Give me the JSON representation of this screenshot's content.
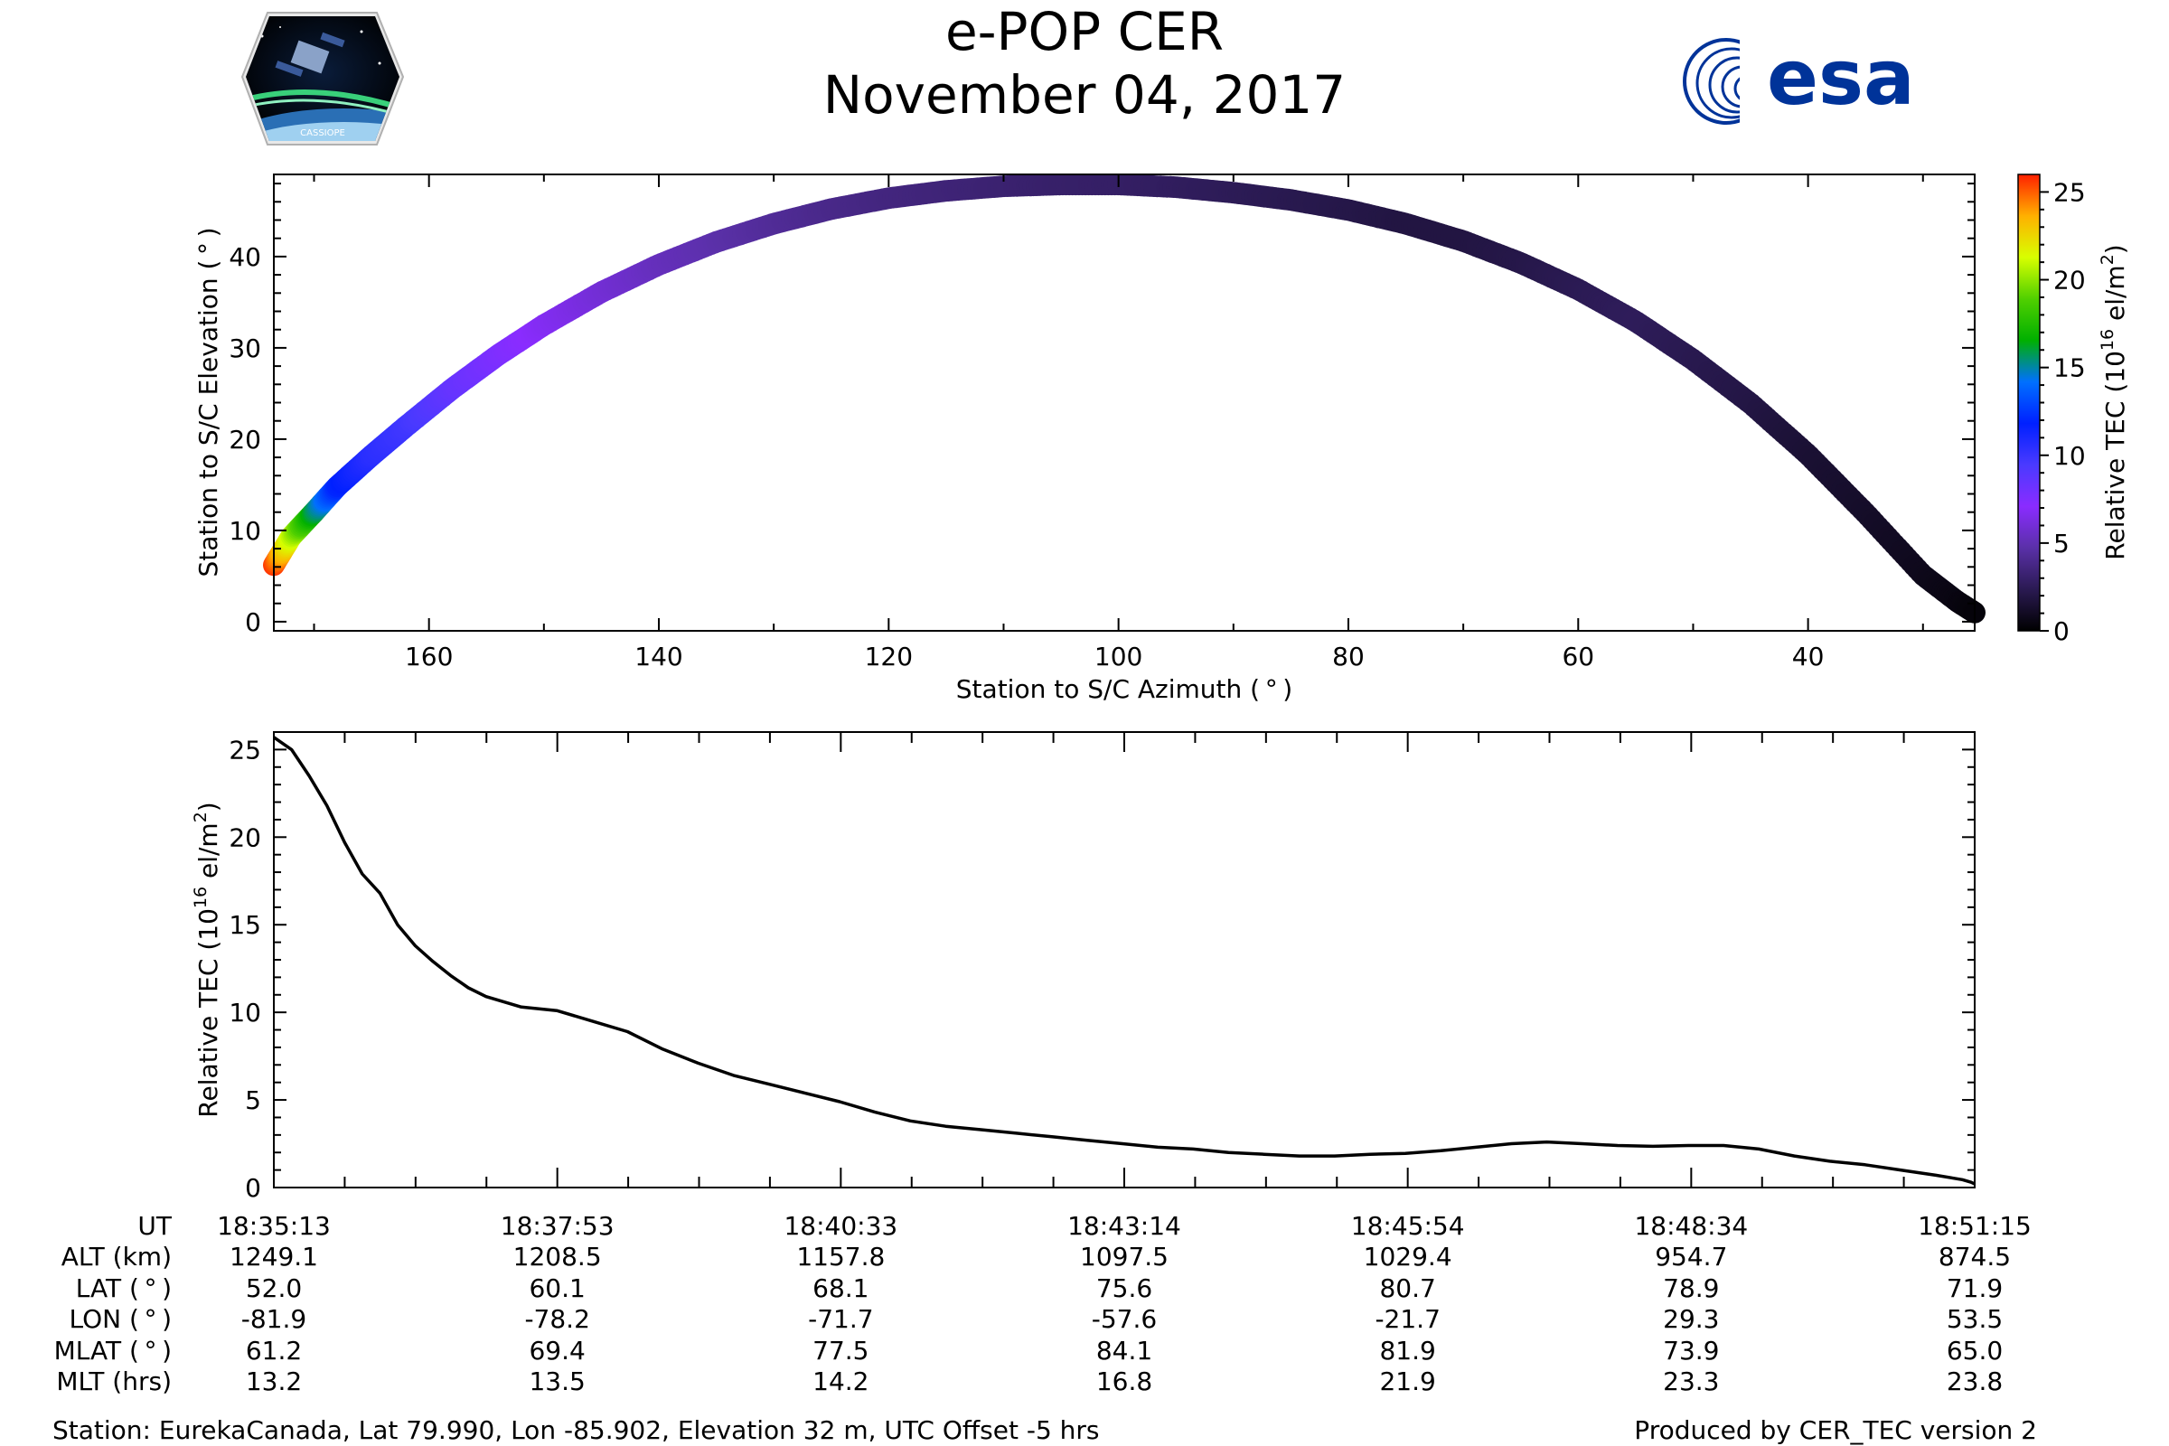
{
  "header": {
    "title": "e-POP CER",
    "date": "November 04, 2017",
    "left_logo_text": "CASSIOPE",
    "right_logo_text": "esa"
  },
  "colors": {
    "esa_blue": "#003399",
    "axis": "#000000",
    "tec_line": "#000000"
  },
  "chart_data": [
    {
      "type": "scatter",
      "name": "elevation-vs-azimuth",
      "xlabel": "Station to S/C Azimuth ( ° )",
      "ylabel": "Station to S/C Elevation ( ° )",
      "xlim": [
        173.5,
        25.5
      ],
      "ylim": [
        -1,
        49
      ],
      "xticks": [
        160,
        140,
        120,
        100,
        80,
        60,
        40
      ],
      "yticks": [
        0,
        10,
        20,
        30,
        40
      ],
      "colorbar": {
        "label": "Relative TEC",
        "label_units": "(10",
        "label_sup": "16",
        "label_tail": " el/m",
        "label_sup2": "2",
        "label_end": ")",
        "min": 0,
        "max": 26,
        "ticks": [
          0,
          5,
          10,
          15,
          20,
          25
        ],
        "colormap": [
          "#000000",
          "#2a1a52",
          "#5a30a8",
          "#8a2cff",
          "#4a3aff",
          "#0020ff",
          "#0070ff",
          "#00b000",
          "#50d000",
          "#d8ff00",
          "#ffb000",
          "#ff2000"
        ]
      },
      "azimuth": [
        173.5,
        172,
        170,
        168,
        165,
        162,
        158,
        154,
        150,
        145,
        140,
        135,
        130,
        125,
        120,
        115,
        110,
        105,
        100,
        95,
        90,
        85,
        80,
        75,
        70,
        65,
        60,
        55,
        50,
        45,
        40,
        35,
        30,
        27,
        25.5
      ],
      "elevation": [
        6.2,
        9.3,
        12.0,
        14.8,
        18.2,
        21.4,
        25.5,
        29.2,
        32.5,
        36.1,
        39.1,
        41.6,
        43.6,
        45.2,
        46.4,
        47.2,
        47.7,
        47.9,
        47.9,
        47.6,
        47.0,
        46.2,
        45.1,
        43.6,
        41.7,
        39.3,
        36.4,
        32.9,
        28.7,
        23.9,
        18.3,
        11.9,
        5.1,
        2.2,
        1.0
      ],
      "tec": [
        25.6,
        21.0,
        16.0,
        12.0,
        10.5,
        9.8,
        8.5,
        7.6,
        6.8,
        6.0,
        5.3,
        4.8,
        4.3,
        3.9,
        3.6,
        3.4,
        3.2,
        3.0,
        2.9,
        2.7,
        2.5,
        2.3,
        2.1,
        1.9,
        1.9,
        2.1,
        2.4,
        2.6,
        2.3,
        2.0,
        1.5,
        1.2,
        0.8,
        0.5,
        0.3
      ]
    },
    {
      "type": "line",
      "name": "tec-vs-time",
      "ylabel": "Relative TEC",
      "ylabel_units": "(10",
      "ylabel_sup": "16",
      "ylabel_tail": " el/m",
      "ylabel_sup2": "2",
      "ylabel_end": ")",
      "xlim": [
        0,
        962
      ],
      "ylim": [
        0,
        26
      ],
      "yticks": [
        0,
        5,
        10,
        15,
        20,
        25
      ],
      "time_s": [
        0,
        10,
        20,
        30,
        40,
        50,
        60,
        70,
        80,
        90,
        100,
        110,
        120,
        140,
        160,
        180,
        200,
        220,
        240,
        260,
        280,
        300,
        320,
        340,
        360,
        380,
        400,
        420,
        440,
        460,
        480,
        500,
        520,
        540,
        560,
        580,
        600,
        620,
        640,
        660,
        680,
        700,
        720,
        740,
        760,
        780,
        800,
        820,
        840,
        860,
        880,
        900,
        920,
        940,
        955,
        960,
        962
      ],
      "tec": [
        25.7,
        25.0,
        23.5,
        21.8,
        19.7,
        17.9,
        16.8,
        15.0,
        13.8,
        12.9,
        12.1,
        11.4,
        10.9,
        10.3,
        10.1,
        9.5,
        8.9,
        7.9,
        7.1,
        6.4,
        5.9,
        5.4,
        4.9,
        4.3,
        3.8,
        3.5,
        3.3,
        3.1,
        2.9,
        2.7,
        2.5,
        2.3,
        2.2,
        2.0,
        1.9,
        1.8,
        1.8,
        1.9,
        1.95,
        2.1,
        2.3,
        2.5,
        2.6,
        2.5,
        2.4,
        2.35,
        2.4,
        2.4,
        2.2,
        1.8,
        1.5,
        1.3,
        1.0,
        0.7,
        0.45,
        0.3,
        0.2
      ]
    }
  ],
  "ephemeris": {
    "row_labels": [
      "UT",
      "ALT (km)",
      "LAT ( ° )",
      "LON ( ° )",
      "MLAT ( ° )",
      "MLT (hrs)"
    ],
    "columns": [
      {
        "UT": "18:35:13",
        "ALT": "1249.1",
        "LAT": "52.0",
        "LON": "-81.9",
        "MLAT": "61.2",
        "MLT": "13.2"
      },
      {
        "UT": "18:37:53",
        "ALT": "1208.5",
        "LAT": "60.1",
        "LON": "-78.2",
        "MLAT": "69.4",
        "MLT": "13.5"
      },
      {
        "UT": "18:40:33",
        "ALT": "1157.8",
        "LAT": "68.1",
        "LON": "-71.7",
        "MLAT": "77.5",
        "MLT": "14.2"
      },
      {
        "UT": "18:43:14",
        "ALT": "1097.5",
        "LAT": "75.6",
        "LON": "-57.6",
        "MLAT": "84.1",
        "MLT": "16.8"
      },
      {
        "UT": "18:45:54",
        "ALT": "1029.4",
        "LAT": "80.7",
        "LON": "-21.7",
        "MLAT": "81.9",
        "MLT": "21.9"
      },
      {
        "UT": "18:48:34",
        "ALT": "954.7",
        "LAT": "78.9",
        "LON": "29.3",
        "MLAT": "73.9",
        "MLT": "23.3"
      },
      {
        "UT": "18:51:15",
        "ALT": "874.5",
        "LAT": "71.9",
        "LON": "53.5",
        "MLAT": "65.0",
        "MLT": "23.8"
      }
    ]
  },
  "footer": {
    "station": "Station: EurekaCanada, Lat 79.990, Lon -85.902, Elevation 32 m, UTC Offset -5 hrs",
    "produced_by": "Produced by CER_TEC version 2"
  }
}
